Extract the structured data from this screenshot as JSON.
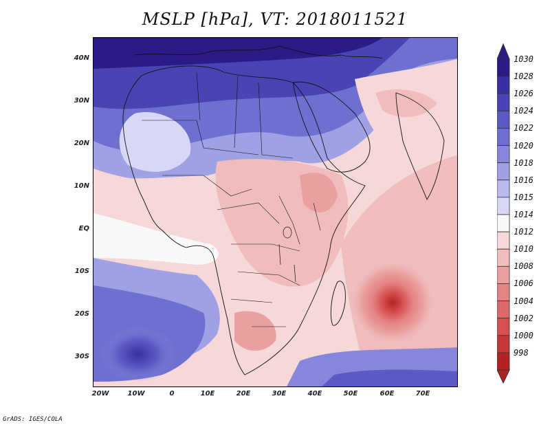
{
  "title": "MSLP [hPa], VT: 2018011521",
  "footer": "GrADS: IGES/COLA",
  "axes": {
    "lat_labels": [
      "40N",
      "30N",
      "20N",
      "10N",
      "EQ",
      "10S",
      "20S",
      "30S"
    ],
    "lon_labels": [
      "20W",
      "10W",
      "0",
      "10E",
      "20E",
      "30E",
      "40E",
      "50E",
      "60E",
      "70E"
    ]
  },
  "colorbar": {
    "labels": [
      "1030",
      "1028",
      "1026",
      "1024",
      "1022",
      "1020",
      "1018",
      "1016",
      "1015",
      "1014",
      "1012",
      "1010",
      "1008",
      "1006",
      "1004",
      "1002",
      "1000",
      "998"
    ],
    "colors": [
      "#2a1b86",
      "#3a2fa0",
      "#4a43b4",
      "#5b59c4",
      "#6e70d0",
      "#8686da",
      "#a0a0e4",
      "#babaee",
      "#d8d8f6",
      "#f8f8f8",
      "#f6d8d8",
      "#f0bcbc",
      "#eaa0a0",
      "#e48585",
      "#dd6a6a",
      "#d55050",
      "#c63838",
      "#b32222"
    ]
  },
  "map": {
    "variable": "MSLP",
    "units": "hPa",
    "region": "Africa / Indian Ocean",
    "features": [
      {
        "name": "High pressure over Mediterranean / Sahara",
        "value": 1030
      },
      {
        "name": "South Atlantic high",
        "value": 1026
      },
      {
        "name": "Indian Ocean low (cyclone)",
        "value": 998
      }
    ]
  }
}
